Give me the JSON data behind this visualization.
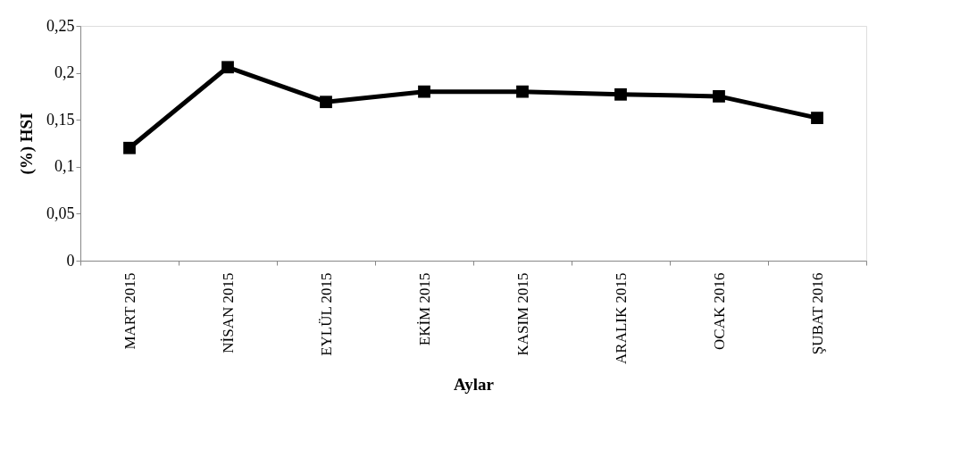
{
  "chart_data": {
    "type": "line",
    "xlabel": "Aylar",
    "ylabel": "(%) HSI",
    "categories": [
      "MART 2015",
      "NİSAN 2015",
      "EYLÜL 2015",
      "EKİM 2015",
      "KASIM 2015",
      "ARALIK 2015",
      "OCAK 2016",
      "ŞUBAT 2016"
    ],
    "series": [
      {
        "color": "#000000",
        "values": [
          0.12,
          0.206,
          0.169,
          0.18,
          0.18,
          0.177,
          0.175,
          0.152
        ]
      }
    ],
    "ylim": [
      0,
      0.25
    ],
    "yticks": [
      {
        "value": 0,
        "label": "0"
      },
      {
        "value": 0.05,
        "label": "0,05"
      },
      {
        "value": 0.1,
        "label": "0,1"
      },
      {
        "value": 0.15,
        "label": "0,15"
      },
      {
        "value": 0.2,
        "label": "0,2"
      },
      {
        "value": 0.25,
        "label": "0,25"
      }
    ],
    "grid": false,
    "legend": false,
    "marker": "square",
    "line_style": "solid"
  }
}
